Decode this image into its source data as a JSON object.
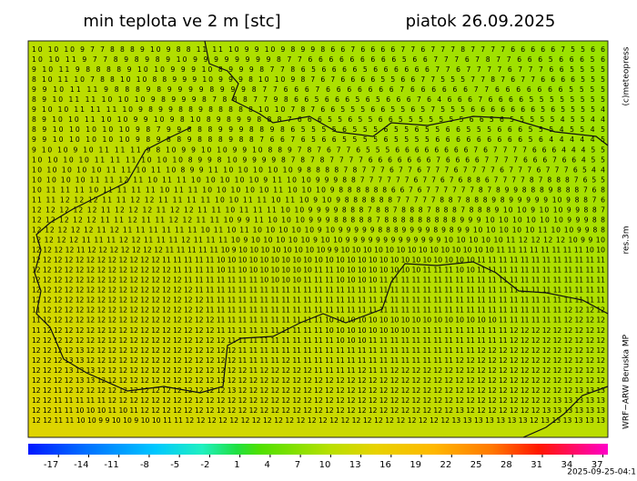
{
  "header": {
    "title": "min teplota ve 2 m [stc]",
    "date": "piatok 26.09.2025"
  },
  "side_labels": {
    "copyright": "(c)meteopress",
    "resolution": "res.3m",
    "model": "WRF−ARW Beruska MP"
  },
  "timestamp": "2025-09-25-04:1",
  "grid_rows": [
    "10 10 10 9 7 7 8 8 8 9 10 9 8 8 11 11 10 9 9 10 9 8 9 9 8 6 6 7 6 6 6 6 7 7 6 7 7 7 8 7 7 7 7 6 6 6 6 6 7 5 5 6 6",
    "10 10 11 9 7 7 8 9 8 9 8 9 10 9 9 9 9 9 9 9 9 8 7 7 6 6 6 6 6 6 6 6 6 5 6 6 7 7 7 6 7 8 7 7 6 6 6 5 6 6 6 5 6",
    "9 10 11 9 8 8 8 8 9 10 10 9 9 9 10 8 9 9 9 8 7 7 8 6 5 6 6 6 6 5 6 6 6 6 6 6 7 7 6 7 7 7 7 6 7 7 7 6 6 5 5 5 5",
    "8 10 11 10 7 8 8 10 10 8 8 9 9 9 10 9 9 9 8 10 10 9 8 7 6 7 6 6 6 6 5 5 6 6 7 7 5 5 5 7 7 8 7 6 7 7 6 6 6 6 5 5 5",
    "9 9 10 11 11 9 8 8 8 9 8 9 9 9 9 8 9 9 9 8 7 7 6 6 6 7 6 6 6 6 6 6 6 7 6 6 6 6 6 6 7 7 6 6 6 6 6 6 6 5 5 5 5",
    "8 9 10 11 11 10 10 10 9 8 9 9 9 8 7 8 8 8 7 7 9 8 6 6 5 6 6 6 5 6 5 6 6 6 7 6 4 6 6 6 7 6 6 6 6 5 5 5 5 5 5 5 5",
    "9 10 10 11 11 11 10 9 8 9 9 8 8 9 8 8 8 8 8 10 10 7 8 7 6 6 5 5 5 6 6 5 5 6 5 7 5 5 5 6 6 6 6 6 6 6 5 6 5 5 5 5 4",
    "8 9 10 10 11 10 10 9 9 10 9 8 10 8 9 8 9 9 8 8 8 7 6 6 6 5 5 6 5 5 6 6 5 5 5 5 5 5 5 6 6 5 6 5 5 5 5 5 4 5 5 4 4",
    "8 9 10 10 10 10 10 9 8 7 9 9 8 8 8 9 9 9 8 8 9 8 6 5 5 5 5 6 5 5 5 6 5 5 6 5 5 6 6 5 5 5 6 6 6 5 5 5 4 5 5 4 5",
    "9 9 10 10 10 10 10 9 8 9 8 8 9 8 8 8 9 8 8 7 6 6 7 6 5 6 6 5 5 5 5 6 5 5 5 5 6 6 6 6 6 6 6 6 6 5 6 4 4 4 4 4 5",
    "9 10 10 9 10 11 11 11 9 8 10 9 9 10 10 9 9 10 8 8 9 7 8 7 6 7 7 6 5 5 5 6 6 6 6 6 6 6 6 7 6 7 7 7 7 6 6 6 4 4 4 5 5",
    "10 10 10 10 11 11 11 10 10 10 8 9 9 8 10 9 9 9 9 8 7 8 7 8 7 7 7 7 6 6 6 6 6 6 6 7 6 6 6 6 7 7 7 7 6 6 6 7 6 6 4 5 5",
    "10 10 10 10 10 11 11 10 11 10 8 9 9 11 10 10 10 10 10 9 8 8 8 8 7 8 7 7 7 6 7 7 6 7 7 7 6 7 7 7 7 6 7 7 7 6 7 7 7 6 5 4 4",
    "10 10 10 10 11 11 12 11 10 11 11 10 10 10 10 10 9 11 10 10 9 9 9 8 8 7 7 7 7 7 7 6 7 7 6 7 6 8 8 6 7 7 7 7 8 7 8 8 8 7 6 5 5",
    "10 11 11 11 10 11 11 11 11 10 11 11 10 10 10 10 10 11 10 10 10 9 8 8 8 8 8 8 6 6 7 6 7 7 7 7 7 7 8 7 8 9 9 8 8 8 9 8 8 8 7 6 8",
    "11 11 12 12 12 11 11 12 12 11 11 11 11 10 10 11 11 10 11 10 9 10 9 8 8 8 8 8 8 7 7 7 7 7 8 8 7 8 8 8 9 8 9 9 9 9 9 10 9 8 8 7 6",
    "12 12 12 12 12 11 12 12 12 11 12 12 11 11 10 11 11 11 10 10 9 9 9 9 8 8 8 7 8 8 7 8 8 8 7 8 8 8 7 8 8 8 9 10 10 9 10 10 9 9 8 8 7",
    "12 12 12 12 12 11 11 12 11 11 12 12 11 11 10 9 9 11 10 10 10 9 9 9 8 8 8 8 8 7 8 8 8 8 8 8 8 8 8 9 9 9 10 10 10 10 10 10 9 9 9 8 8",
    "12 12 12 12 12 11 12 11 11 11 11 11 11 10 11 10 11 10 10 10 10 10 9 10 9 9 9 9 9 8 8 8 9 9 9 9 8 9 8 9 9 10 10 10 10 10 11 10 10 9 9 8 8",
    "12 12 12 12 11 11 11 12 12 11 11 11 12 11 11 11 10 9 10 10 10 10 10 9 10 10 9 9 9 9 9 9 9 9 9 9 9 9 9 10 10 10 10 10 11 12 12 12 12 10 9 9 10",
    "12 12 12 12 11 12 12 12 12 12 12 12 11 11 11 11 11 10 9 10 10 10 10 10 10 10 10 9 9 10 10 10 10 10 10 10 10 10 10 10 10 10 10 11 11 11 11 11 11 11 11 10 10",
    "12 12 12 12 12 12 12 12 12 12 12 12 11 11 11 11 11 10 10 10 10 10 10 10 10 10 10 10 10 10 10 10 10 10 10 10 10 10 10 10 10 11 11 11 11 11 11 11 11 11 11 11 11",
    "12 12 12 12 12 12 12 12 12 12 12 12 12 11 11 11 11 10 11 10 10 10 10 10 10 10 11 11 10 10 10 10 10 10 10 10 11 11 11 10 10 11 11 11 11 11 11 11 11 11 11 11 11",
    "12 12 12 12 12 12 12 12 12 12 12 12 12 12 11 11 11 11 11 11 11 10 10 10 10 11 11 11 10 10 10 10 11 11 11 11 11 11 11 11 11 11 11 11 11 11 11 11 11 11 11 11 11",
    "12 12 12 12 12 12 12 12 12 12 12 12 12 12 12 11 11 11 11 11 11 11 11 11 11 11 11 11 11 11 11 11 11 11 11 11 11 11 11 11 11 11 11 11 11 11 11 11 11 11 11 11 11",
    "12 12 12 12 12 12 12 12 12 12 12 12 12 12 12 12 11 11 11 11 11 11 11 11 11 11 11 11 11 11 11 11 11 11 11 11 11 11 11 11 11 11 11 11 11 11 11 11 11 11 11 11 11",
    "11 12 12 12 12 12 12 12 12 12 12 12 12 12 12 12 11 11 11 11 11 11 11 11 11 11 11 11 11 11 11 11 11 11 11 11 11 11 11 11 11 11 11 11 11 11 11 11 11 12 12 12 12",
    "11 12 12 12 12 12 12 12 12 12 12 12 12 12 12 12 12 11 11 11 11 11 11 11 11 11 11 10 10 10 10 10 10 10 10 10 10 10 10 10 10 10 10 11 11 11 11 11 11 12 12 12 12",
    "11 12 12 12 12 12 12 12 12 12 12 12 12 12 12 12 12 11 11 11 11 11 11 11 11 11 11 10 10 10 10 10 10 10 10 11 11 11 11 11 11 11 11 11 12 12 12 12 12 12 12 12 12",
    "12 12 12 12 12 12 12 12 12 12 12 12 12 12 12 12 12 12 11 11 11 11 11 11 11 11 11 11 10 10 10 11 11 11 11 11 11 11 11 11 11 11 11 11 12 12 12 12 12 12 12 12 12",
    "12 12 12 12 13 12 12 12 12 12 12 12 12 12 12 12 12 12 12 11 11 11 11 11 11 11 11 11 11 11 11 11 11 11 11 11 11 11 11 11 11 12 12 12 12 12 12 12 12 12 12 12 12",
    "12 12 12 13 13 12 12 12 12 12 12 12 12 12 12 12 12 12 12 11 11 11 11 12 11 11 11 11 11 11 11 11 11 11 11 11 11 11 11 12 12 12 12 12 12 12 12 12 12 12 12 12 12",
    "12 12 12 13 13 13 12 12 12 12 12 12 12 12 12 12 12 12 12 12 11 12 12 12 12 12 11 11 11 11 12 11 11 12 12 12 12 12 12 12 12 12 12 12 12 12 12 12 12 12 12 12 12",
    "12 12 12 12 13 13 12 12 12 12 12 12 12 12 12 12 12 13 12 12 12 12 12 12 12 12 12 12 12 12 12 12 12 12 12 12 12 12 12 12 12 12 12 12 12 12 12 12 12 12 12 12 12",
    "12 12 11 12 12 12 12 12 12 12 12 12 12 12 12 12 12 12 13 12 12 12 12 12 12 12 12 12 12 12 12 12 12 12 12 12 12 12 12 12 12 12 12 12 12 12 12 12 12 12 13 13 13",
    "12 12 11 11 11 11 11 12 12 12 12 12 12 12 12 12 12 12 12 12 12 12 12 12 12 12 12 12 12 12 12 12 12 12 12 12 12 12 12 12 12 12 12 12 12 12 12 12 13 13 13 13 13",
    "12 12 11 11 10 10 10 11 10 11 12 12 12 12 12 12 12 12 12 12 12 12 12 12 12 12 12 12 12 12 12 12 12 12 12 12 12 12 12 13 12 12 12 12 12 12 12 13 13 13 13 13 13",
    "12 12 11 11 10 10 9 9 10 10 9 10 10 11 11 12 12 12 12 12 12 12 12 12 12 12 12 12 12 12 12 12 12 12 12 12 12 12 12 13 13 13 13 13 13 13 12 13 13 13 13 13 13"
  ],
  "colorbar": {
    "range": [
      -20,
      37.5
    ],
    "ticks": [
      -17,
      -14,
      -11,
      -8,
      -5,
      -2,
      1,
      4,
      7,
      10,
      13,
      16,
      19,
      22,
      25,
      28,
      31,
      34,
      37
    ]
  }
}
